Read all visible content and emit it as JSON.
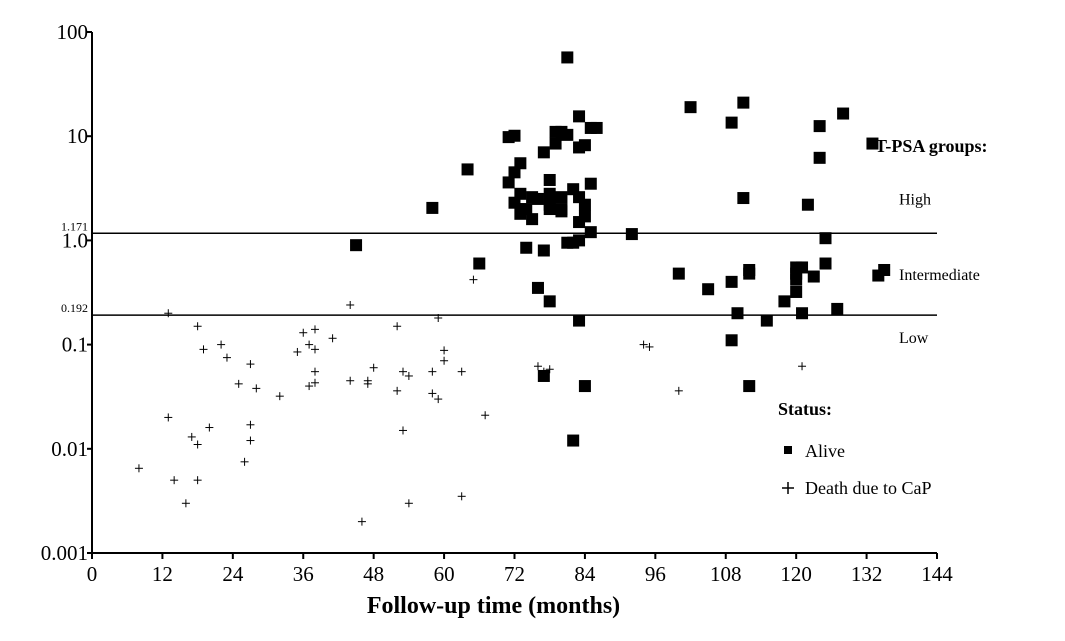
{
  "chart_data": {
    "type": "scatter",
    "xlabel": "Follow-up time (months)",
    "ylabel": "",
    "xlim": [
      0,
      144
    ],
    "ylim": [
      0.001,
      100
    ],
    "yscale": "log",
    "xticks": [
      0,
      12,
      24,
      36,
      48,
      60,
      72,
      84,
      96,
      108,
      120,
      132,
      144
    ],
    "xtick_labels": [
      "0",
      "12",
      "24",
      "36",
      "48",
      "60",
      "72",
      "84",
      "96",
      "108",
      "120",
      "132",
      "144"
    ],
    "yticks": [
      0.001,
      0.01,
      0.1,
      1,
      10,
      100
    ],
    "ytick_labels": [
      "0.001",
      "0.01",
      "0.1",
      "1.0",
      "10",
      "100"
    ],
    "grid": false,
    "reference_lines": [
      {
        "y": 1.171,
        "label": "1.171"
      },
      {
        "y": 0.192,
        "label": "0.192"
      }
    ],
    "group_annotations": {
      "title": "T-PSA groups:",
      "items": [
        "High",
        "Intermediate",
        "Low"
      ]
    },
    "legend": {
      "title": "Status:",
      "placement": "right",
      "entries": [
        {
          "marker": "square",
          "label": "Alive"
        },
        {
          "marker": "plus",
          "label": "Death due to CaP"
        }
      ]
    },
    "series": [
      {
        "name": "Alive",
        "marker": "square",
        "color": "#000000",
        "points": [
          [
            45,
            0.9
          ],
          [
            58,
            2.05
          ],
          [
            64,
            4.8
          ],
          [
            66,
            0.6
          ],
          [
            71,
            9.8
          ],
          [
            72,
            10.1
          ],
          [
            71,
            3.6
          ],
          [
            72,
            2.3
          ],
          [
            72,
            4.5
          ],
          [
            73,
            5.5
          ],
          [
            73,
            2.8
          ],
          [
            73,
            1.8
          ],
          [
            74,
            2.0
          ],
          [
            74,
            0.85
          ],
          [
            75,
            2.6
          ],
          [
            75,
            1.6
          ],
          [
            76,
            0.35
          ],
          [
            76,
            2.5
          ],
          [
            77,
            7.0
          ],
          [
            77,
            0.8
          ],
          [
            78,
            3.8
          ],
          [
            78,
            2.8
          ],
          [
            78,
            2.2
          ],
          [
            78,
            2.0
          ],
          [
            78,
            0.26
          ],
          [
            77,
            0.05
          ],
          [
            79,
            8.5
          ],
          [
            79,
            11.0
          ],
          [
            80,
            11.0
          ],
          [
            80,
            2.6
          ],
          [
            80,
            1.9
          ],
          [
            80,
            2.0
          ],
          [
            81,
            57
          ],
          [
            81,
            10.3
          ],
          [
            81,
            0.95
          ],
          [
            82,
            0.012
          ],
          [
            82,
            3.1
          ],
          [
            82,
            0.95
          ],
          [
            83,
            15.5
          ],
          [
            83,
            7.8
          ],
          [
            83,
            2.6
          ],
          [
            83,
            1.5
          ],
          [
            83,
            1.0
          ],
          [
            83,
            0.17
          ],
          [
            84,
            8.2
          ],
          [
            84,
            2.2
          ],
          [
            84,
            1.7
          ],
          [
            84,
            0.04
          ],
          [
            85,
            3.5
          ],
          [
            85,
            1.2
          ],
          [
            85,
            12.0
          ],
          [
            86,
            12.0
          ],
          [
            92,
            1.15
          ],
          [
            100,
            0.48
          ],
          [
            102,
            19
          ],
          [
            105,
            0.34
          ],
          [
            109,
            13.5
          ],
          [
            109,
            0.4
          ],
          [
            109,
            0.11
          ],
          [
            110,
            0.2
          ],
          [
            111,
            21
          ],
          [
            111,
            2.55
          ],
          [
            112,
            0.48
          ],
          [
            112,
            0.52
          ],
          [
            112,
            0.04
          ],
          [
            115,
            0.17
          ],
          [
            118,
            0.26
          ],
          [
            120,
            0.48
          ],
          [
            120,
            0.42
          ],
          [
            120,
            0.32
          ],
          [
            120,
            0.55
          ],
          [
            121,
            0.2
          ],
          [
            121,
            0.55
          ],
          [
            122,
            2.2
          ],
          [
            123,
            0.45
          ],
          [
            124,
            12.5
          ],
          [
            124,
            6.2
          ],
          [
            125,
            0.6
          ],
          [
            125,
            1.05
          ],
          [
            127,
            0.22
          ],
          [
            128,
            16.5
          ],
          [
            133,
            8.5
          ],
          [
            134,
            0.46
          ],
          [
            135,
            0.52
          ]
        ]
      },
      {
        "name": "Death due to CaP",
        "marker": "plus",
        "color": "#000000",
        "points": [
          [
            8,
            0.0065
          ],
          [
            13,
            0.2
          ],
          [
            13,
            0.02
          ],
          [
            14,
            0.005
          ],
          [
            16,
            0.003
          ],
          [
            17,
            0.013
          ],
          [
            18,
            0.011
          ],
          [
            18,
            0.005
          ],
          [
            18,
            0.15
          ],
          [
            19,
            0.09
          ],
          [
            20,
            0.016
          ],
          [
            22,
            0.1
          ],
          [
            23,
            0.075
          ],
          [
            25,
            0.042
          ],
          [
            26,
            0.0075
          ],
          [
            27,
            0.017
          ],
          [
            27,
            0.012
          ],
          [
            27,
            0.065
          ],
          [
            28,
            0.038
          ],
          [
            32,
            0.032
          ],
          [
            35,
            0.085
          ],
          [
            36,
            0.13
          ],
          [
            37,
            0.1
          ],
          [
            37,
            0.04
          ],
          [
            38,
            0.043
          ],
          [
            38,
            0.09
          ],
          [
            38,
            0.055
          ],
          [
            38,
            0.14
          ],
          [
            41,
            0.115
          ],
          [
            44,
            0.24
          ],
          [
            44,
            0.045
          ],
          [
            46,
            0.002
          ],
          [
            47,
            0.042
          ],
          [
            47,
            0.045
          ],
          [
            48,
            0.06
          ],
          [
            52,
            0.15
          ],
          [
            52,
            0.036
          ],
          [
            53,
            0.015
          ],
          [
            53,
            0.055
          ],
          [
            54,
            0.05
          ],
          [
            54,
            0.003
          ],
          [
            58,
            0.055
          ],
          [
            58,
            0.034
          ],
          [
            59,
            0.03
          ],
          [
            59,
            0.18
          ],
          [
            60,
            0.07
          ],
          [
            60,
            0.088
          ],
          [
            63,
            0.0035
          ],
          [
            63,
            0.055
          ],
          [
            65,
            0.42
          ],
          [
            67,
            0.021
          ],
          [
            76,
            0.062
          ],
          [
            77,
            0.055
          ],
          [
            78,
            0.058
          ],
          [
            94,
            0.1
          ],
          [
            95,
            0.095
          ],
          [
            100,
            0.036
          ],
          [
            121,
            0.062
          ]
        ]
      }
    ]
  }
}
